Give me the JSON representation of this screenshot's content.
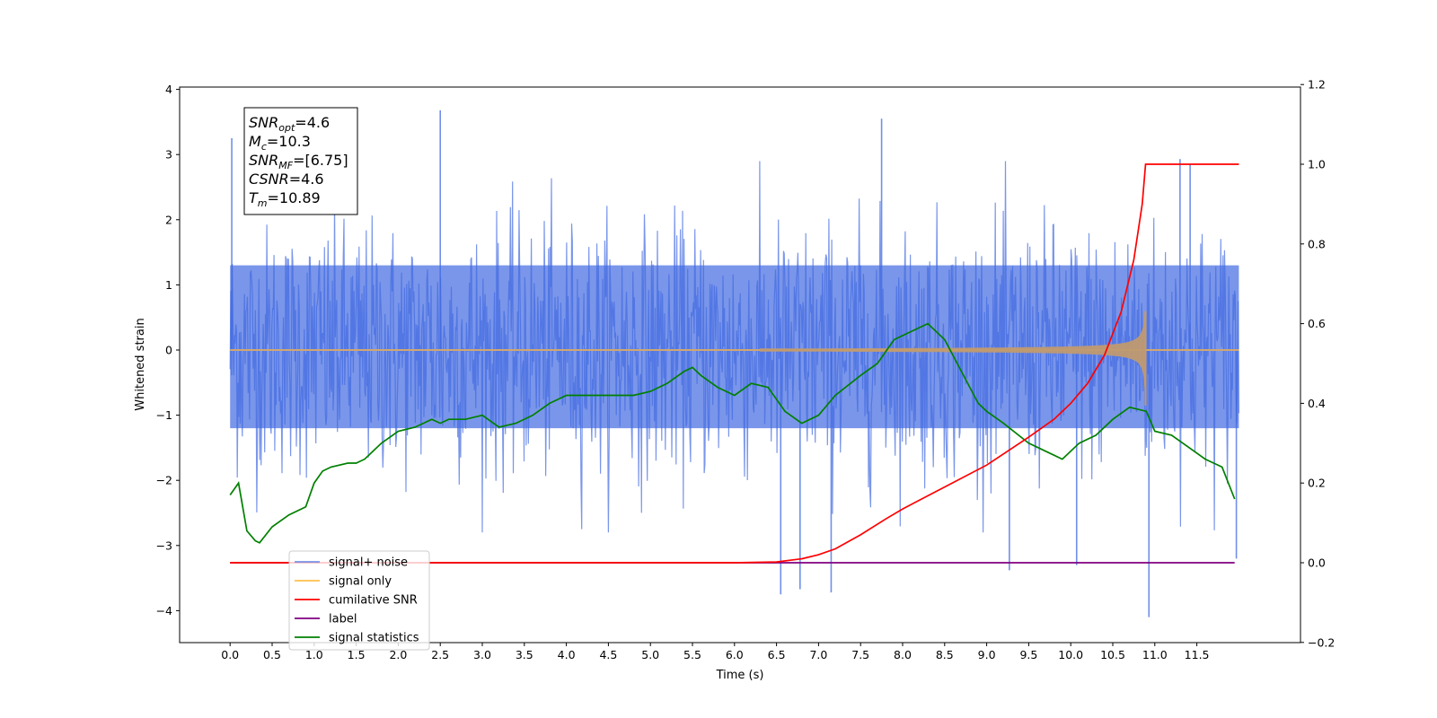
{
  "chart_data": {
    "type": "line",
    "xlabel": "Time (s)",
    "ylabel": "Whitened strain",
    "xlim": [
      -0.6,
      12.6
    ],
    "ylim": [
      -4.5,
      4.05
    ],
    "y2lim": [
      -0.2,
      1.2
    ],
    "x_ticks": [
      "0.0",
      "0.5",
      "1.0",
      "1.5",
      "2.0",
      "2.5",
      "3.0",
      "3.5",
      "4.0",
      "4.5",
      "5.0",
      "5.5",
      "6.0",
      "6.5",
      "7.0",
      "7.5",
      "8.0",
      "8.5",
      "9.0",
      "9.5",
      "10.0",
      "10.5",
      "11.0",
      "11.5"
    ],
    "y_ticks": [
      "4",
      "3",
      "2",
      "1",
      "0",
      "−1",
      "−2",
      "−3",
      "−4"
    ],
    "y2_ticks": [
      "1.2",
      "1.0",
      "0.8",
      "0.6",
      "0.4",
      "0.2",
      "0.0",
      "−0.2"
    ],
    "grid": false,
    "legend_position": "lower-left",
    "legend": [
      {
        "label": "signal+ noise",
        "color": "#4169E1"
      },
      {
        "label": "signal only",
        "color": "#FFA500"
      },
      {
        "label": "cumilative SNR",
        "color": "#FF0000"
      },
      {
        "label": "label",
        "color": "#800080"
      },
      {
        "label": "signal statistics",
        "color": "#008000"
      }
    ],
    "annotation": {
      "lines": [
        {
          "var": "SNR",
          "sub": "opt",
          "value": "=4.6"
        },
        {
          "var": "M",
          "sub": "c",
          "value": "=10.3"
        },
        {
          "var": "SNR",
          "sub": "MF",
          "value": "=[6.75]"
        },
        {
          "var": "CSNR",
          "sub": "",
          "value": "=4.6"
        },
        {
          "var": "T",
          "sub": "m",
          "value": "=10.89"
        }
      ]
    },
    "series": [
      {
        "name": "signal+ noise",
        "axis": "left",
        "color": "#4169E1",
        "x_range": [
          0.0,
          12.0
        ],
        "envelope_y": [
          -2.8,
          2.9
        ],
        "spikes": [
          [
            0.02,
            3.25
          ],
          [
            2.5,
            3.68
          ],
          [
            6.55,
            -3.75
          ],
          [
            6.78,
            -3.67
          ],
          [
            7.15,
            -3.72
          ],
          [
            7.75,
            3.55
          ],
          [
            9.27,
            -3.38
          ],
          [
            10.07,
            -3.3
          ],
          [
            10.93,
            -4.1
          ],
          [
            11.3,
            2.93
          ],
          [
            11.42,
            2.85
          ],
          [
            11.97,
            -3.2
          ]
        ]
      },
      {
        "name": "signal only",
        "axis": "left",
        "color": "#FFA500",
        "chirp_start": 6.3,
        "merger_time": 10.89,
        "peak_amplitude": 0.6
      },
      {
        "name": "cumilative SNR",
        "axis": "right",
        "color": "#FF0000",
        "x": [
          0.0,
          6.0,
          6.5,
          6.8,
          7.0,
          7.2,
          7.5,
          7.8,
          8.0,
          8.5,
          9.0,
          9.5,
          9.8,
          10.0,
          10.2,
          10.4,
          10.6,
          10.75,
          10.85,
          10.89,
          11.2,
          11.5,
          12.0
        ],
        "y": [
          0.0,
          0.0,
          0.002,
          0.01,
          0.02,
          0.035,
          0.07,
          0.11,
          0.135,
          0.19,
          0.245,
          0.315,
          0.36,
          0.4,
          0.45,
          0.52,
          0.63,
          0.76,
          0.9,
          1.0,
          1.0,
          1.0,
          1.0
        ]
      },
      {
        "name": "label",
        "axis": "right",
        "color": "#800080",
        "x": [
          0.0,
          11.95
        ],
        "y": [
          0.0,
          0.0
        ]
      },
      {
        "name": "signal statistics",
        "axis": "right",
        "color": "#008000",
        "x": [
          0.0,
          0.1,
          0.2,
          0.3,
          0.35,
          0.5,
          0.7,
          0.9,
          1.0,
          1.1,
          1.2,
          1.4,
          1.5,
          1.6,
          1.8,
          2.0,
          2.2,
          2.4,
          2.5,
          2.6,
          2.8,
          3.0,
          3.2,
          3.4,
          3.6,
          3.8,
          3.9,
          4.0,
          4.2,
          4.5,
          4.8,
          5.0,
          5.2,
          5.4,
          5.5,
          5.6,
          5.8,
          6.0,
          6.2,
          6.4,
          6.6,
          6.8,
          7.0,
          7.2,
          7.5,
          7.7,
          7.9,
          8.0,
          8.2,
          8.3,
          8.5,
          8.7,
          8.9,
          9.0,
          9.2,
          9.5,
          9.7,
          9.9,
          10.1,
          10.3,
          10.5,
          10.7,
          10.9,
          11.0,
          11.2,
          11.4,
          11.6,
          11.8,
          11.95
        ],
        "y": [
          0.17,
          0.2,
          0.08,
          0.055,
          0.05,
          0.09,
          0.12,
          0.14,
          0.2,
          0.23,
          0.24,
          0.25,
          0.25,
          0.26,
          0.3,
          0.33,
          0.34,
          0.36,
          0.35,
          0.36,
          0.36,
          0.37,
          0.34,
          0.35,
          0.37,
          0.4,
          0.41,
          0.42,
          0.42,
          0.42,
          0.42,
          0.43,
          0.45,
          0.48,
          0.49,
          0.47,
          0.44,
          0.42,
          0.45,
          0.44,
          0.38,
          0.35,
          0.37,
          0.42,
          0.47,
          0.5,
          0.56,
          0.57,
          0.59,
          0.6,
          0.56,
          0.48,
          0.4,
          0.38,
          0.35,
          0.3,
          0.28,
          0.26,
          0.3,
          0.32,
          0.36,
          0.39,
          0.38,
          0.33,
          0.32,
          0.29,
          0.26,
          0.24,
          0.16
        ]
      }
    ]
  }
}
